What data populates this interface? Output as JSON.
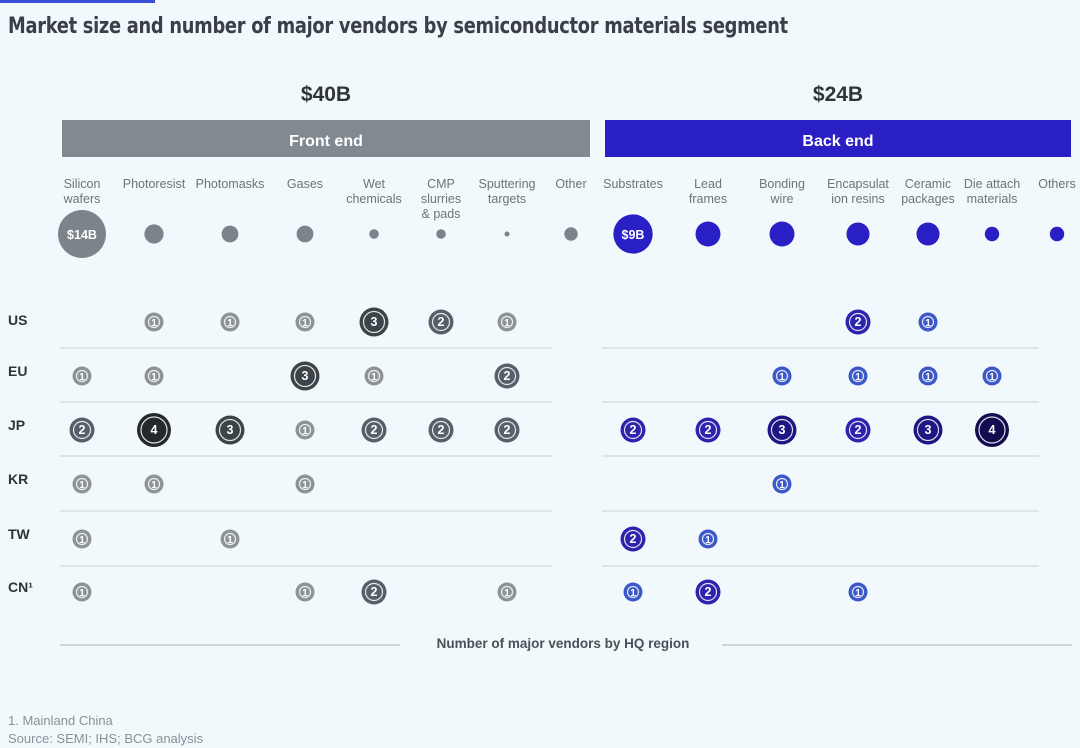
{
  "title": "Market size and number of major vendors by semiconductor materials segment",
  "footnote": "1. Mainland China",
  "source": "Source: SEMI; IHS; BCG analysis",
  "colors": {
    "front_header": "#828a91",
    "back_header": "#2a1fc4",
    "front_dot": "#7c848b",
    "back_dot": "#2a1fc4",
    "text": "#2f3438",
    "muted": "#6d747a"
  },
  "chart_data": {
    "type": "bubble-matrix",
    "groups": [
      {
        "name": "Front end",
        "total": "$40B",
        "segments": [
          "Silicon\nwafers",
          "Photoresist",
          "Photomasks",
          "Gases",
          "Wet\nchemicals",
          "CMP\nslurries\n& pads",
          "Sputtering\ntargets",
          "Other"
        ],
        "market_size_labels": [
          "$14B",
          "",
          "",
          "",
          "",
          "",
          "",
          ""
        ],
        "market_size_relative": [
          1.0,
          0.4,
          0.35,
          0.35,
          0.2,
          0.2,
          0.1,
          0.28
        ]
      },
      {
        "name": "Back end",
        "total": "$24B",
        "segments": [
          "Substrates",
          "Lead\nframes",
          "Bonding\nwire",
          "Encapsulat\nion resins",
          "Ceramic\npackages",
          "Die attach\nmaterials",
          "Others"
        ],
        "market_size_labels": [
          "$9B",
          "",
          "",
          "",
          "",
          "",
          ""
        ],
        "market_size_relative": [
          0.82,
          0.52,
          0.52,
          0.48,
          0.48,
          0.3,
          0.3
        ]
      }
    ],
    "regions": [
      "US",
      "EU",
      "JP",
      "KR",
      "TW",
      "CN¹"
    ],
    "vendors_front": [
      [
        0,
        1,
        1,
        1,
        3,
        2,
        1,
        0
      ],
      [
        1,
        1,
        0,
        3,
        1,
        0,
        2,
        0
      ],
      [
        2,
        4,
        3,
        1,
        2,
        2,
        2,
        0
      ],
      [
        1,
        1,
        0,
        1,
        0,
        0,
        0,
        0
      ],
      [
        1,
        0,
        1,
        0,
        0,
        0,
        0,
        0
      ],
      [
        1,
        0,
        0,
        1,
        2,
        0,
        1,
        0
      ]
    ],
    "vendors_back": [
      [
        0,
        0,
        0,
        2,
        1,
        0,
        0
      ],
      [
        0,
        0,
        1,
        1,
        1,
        1,
        0
      ],
      [
        2,
        2,
        3,
        2,
        3,
        4,
        0
      ],
      [
        0,
        0,
        1,
        0,
        0,
        0,
        0
      ],
      [
        2,
        1,
        0,
        0,
        0,
        0,
        0
      ],
      [
        1,
        2,
        0,
        1,
        0,
        0,
        0
      ]
    ],
    "axis_label": "Number of major vendors by HQ region"
  }
}
